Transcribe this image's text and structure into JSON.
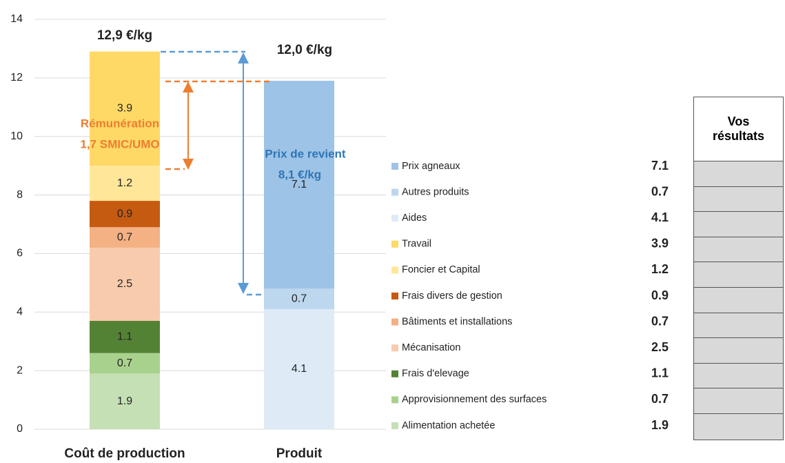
{
  "chart_data": {
    "type": "bar",
    "stacked": true,
    "categories": [
      "Coût de production",
      "Produit"
    ],
    "series": [
      {
        "name": "Alimentation achetée",
        "color": "#c5e0b4",
        "values": [
          1.9,
          null
        ]
      },
      {
        "name": "Approvisionnement des surfaces",
        "color": "#a9d18e",
        "values": [
          0.7,
          null
        ]
      },
      {
        "name": "Frais d'elevage",
        "color": "#548235",
        "values": [
          1.1,
          null
        ]
      },
      {
        "name": "Mécanisation",
        "color": "#f8cbad",
        "values": [
          2.5,
          null
        ]
      },
      {
        "name": "Bâtiments et installations",
        "color": "#f4b183",
        "values": [
          0.7,
          null
        ]
      },
      {
        "name": "Frais divers de gestion",
        "color": "#c55a11",
        "values": [
          0.9,
          null
        ]
      },
      {
        "name": "Foncier et Capital",
        "color": "#ffe699",
        "values": [
          1.2,
          null
        ]
      },
      {
        "name": "Travail",
        "color": "#ffd966",
        "values": [
          3.9,
          null
        ]
      },
      {
        "name": "Aides",
        "color": "#deebf7",
        "values": [
          null,
          4.1
        ]
      },
      {
        "name": "Autres produits",
        "color": "#bdd7ee",
        "values": [
          null,
          0.7
        ]
      },
      {
        "name": "Prix agneaux",
        "color": "#9dc3e6",
        "values": [
          null,
          7.1
        ]
      }
    ],
    "ylim": [
      0,
      14
    ],
    "yticks": [
      0,
      2,
      4,
      6,
      8,
      10,
      12,
      14
    ],
    "grid": true,
    "annotations": [
      "12,9 €/kg",
      "12,0 €/kg",
      "Rémunération",
      "1,7 SMIC/UMO",
      "Prix de revient",
      "8,1 €/kg"
    ]
  },
  "table": {
    "header": "Vos résultats"
  }
}
